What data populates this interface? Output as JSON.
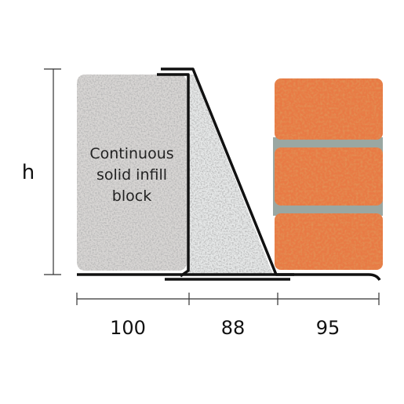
{
  "height_label": "h",
  "block_label": [
    "Continuous",
    "solid infill",
    "block"
  ],
  "dimensions": [
    100,
    88,
    95
  ]
}
